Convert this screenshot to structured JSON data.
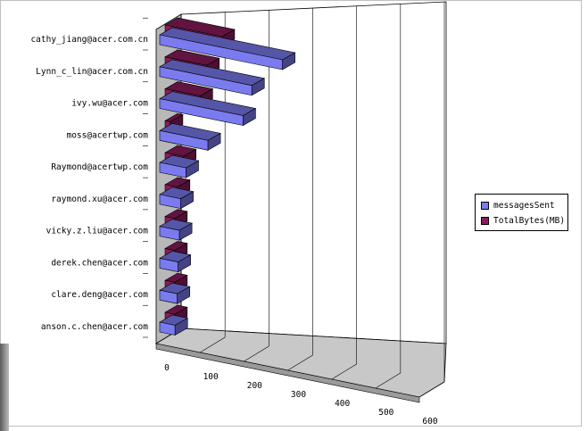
{
  "chart_data": {
    "type": "bar",
    "orientation": "horizontal",
    "style": "3d",
    "categories": [
      "anson.c.chen@acer.com",
      "clare.deng@acer.com",
      "derek.chen@acer.com",
      "vicky.z.liu@acer.com",
      "raymond.xu@acer.com",
      "Raymond@acertwp.com",
      "moss@acertwp.com",
      "ivy.wu@acer.com",
      "Lynn_c_lin@acer.com.cn",
      "cathy_jiang@acer.com.cn"
    ],
    "series": [
      {
        "name": "messagesSent",
        "color": "#7b7bf0",
        "values": [
          35,
          40,
          42,
          45,
          48,
          60,
          110,
          190,
          210,
          280
        ]
      },
      {
        "name": "TotalBytes(MB)",
        "color": "#8a1c5c",
        "values": [
          22,
          22,
          22,
          22,
          28,
          42,
          12,
          80,
          95,
          130
        ]
      }
    ],
    "x_ticks": [
      "0",
      "100",
      "200",
      "300",
      "400",
      "500",
      "600"
    ],
    "xlim": [
      0,
      600
    ],
    "grid": true,
    "legend_position": "right"
  }
}
